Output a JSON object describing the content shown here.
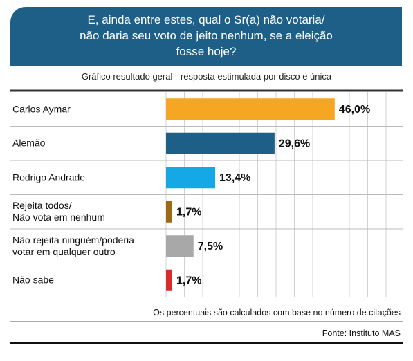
{
  "chart_data": {
    "type": "hbar",
    "title": "E, ainda entre estes, qual o Sr(a) não votaria/\nnão daria seu voto de jeito nenhum, se a eleição\nfosse hoje?",
    "subtitle": "Gráfico resultado geral - resposta estimulada por disco e única",
    "categories": [
      "Carlos Aymar",
      "Alemão",
      "Rodrigo Andrade",
      "Rejeita todos/\nNão vota em nenhum",
      "Não rejeita ninguém/poderia\nvotar em qualquer outro",
      "Não sabe"
    ],
    "values": [
      46.0,
      29.6,
      13.4,
      1.7,
      7.5,
      1.7
    ],
    "value_labels": [
      "46,0%",
      "29,6%",
      "13,4%",
      "1,7%",
      "7,5%",
      "1,7%"
    ],
    "colors": [
      "#f5a623",
      "#1d5f86",
      "#14a9e6",
      "#9c6a12",
      "#a8a8a8",
      "#d92b2b"
    ],
    "xlim": [
      0,
      65
    ],
    "xticks": [
      0,
      5,
      10,
      15,
      20,
      25,
      30,
      35,
      40,
      45,
      50,
      55,
      60
    ],
    "grid": true,
    "note": "Os percentuais são calculados com base no número de citações",
    "source": "Fonte: Instituto MAS"
  }
}
